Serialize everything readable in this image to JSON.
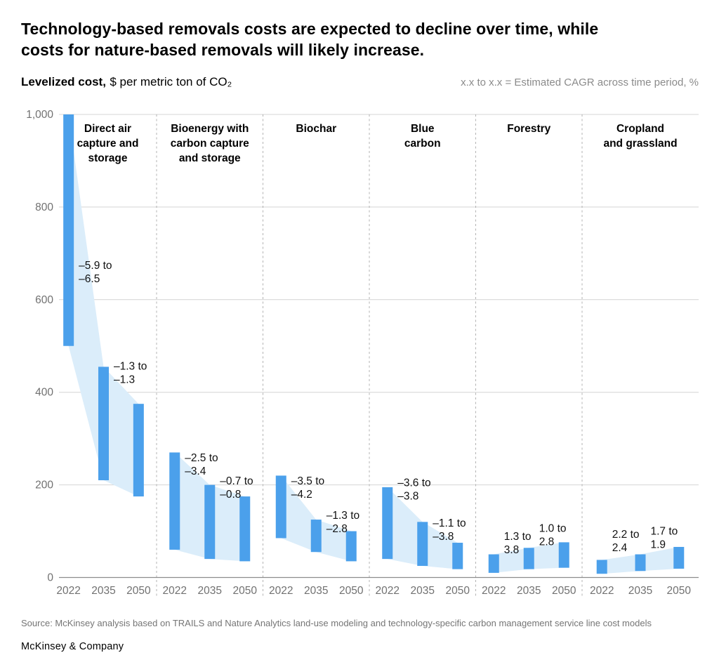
{
  "page": {
    "title_lines": [
      "Technology-based removals costs are expected to decline over time, while",
      "costs for nature-based removals will likely increase."
    ],
    "subtitle_bold": "Levelized cost,",
    "subtitle_rest": "$ per metric ton of CO₂",
    "legend_note": "x.x to x.x = Estimated CAGR across time period, %",
    "source": "Source: McKinsey analysis based on TRAILS and Nature Analytics land-use modeling and technology-specific carbon management service line cost models",
    "brand": "McKinsey & Company"
  },
  "chart_data": {
    "type": "bar",
    "subtype": "floating-range-bars-with-connecting-band",
    "title": "Levelized cost, $ per metric ton of CO₂",
    "xlabel": "",
    "ylabel": "$ per metric ton of CO₂",
    "years": [
      "2022",
      "2035",
      "2050"
    ],
    "ylim": [
      0,
      1000
    ],
    "yticks": [
      0,
      200,
      400,
      600,
      800,
      1000
    ],
    "ytick_labels": [
      "0",
      "200",
      "400",
      "600",
      "800",
      "1,000"
    ],
    "grid": true,
    "legend_position": "top-right",
    "colors": {
      "bar": "#4BA0EB",
      "band": "#DBEDFA",
      "grid": "#D4D4D4",
      "zero_axis": "#8C8C8C",
      "separator": "#B3B3B3",
      "tick_text": "#717171",
      "category_text": "#000000",
      "annotation_text": "#111111"
    },
    "categories": [
      {
        "name": "Direct air capture and storage",
        "label_lines": [
          "Direct air",
          "capture and",
          "storage"
        ],
        "ranges": [
          [
            500,
            1000
          ],
          [
            210,
            455
          ],
          [
            175,
            375
          ]
        ],
        "cagr": [
          {
            "lines": [
              "–5.9 to",
              "–6.5"
            ],
            "label_y": 688
          },
          {
            "lines": [
              "–1.3 to",
              "–1.3"
            ],
            "label_y": 470
          }
        ]
      },
      {
        "name": "Bioenergy with carbon capture and storage",
        "label_lines": [
          "Bioenergy with",
          "carbon capture",
          "and storage"
        ],
        "ranges": [
          [
            60,
            270
          ],
          [
            40,
            200
          ],
          [
            35,
            175
          ]
        ],
        "cagr": [
          {
            "lines": [
              "–2.5 to",
              "–3.4"
            ],
            "label_y": 272
          },
          {
            "lines": [
              "–0.7 to",
              "–0.8"
            ],
            "label_y": 222
          }
        ]
      },
      {
        "name": "Biochar",
        "label_lines": [
          "Biochar"
        ],
        "ranges": [
          [
            85,
            220
          ],
          [
            55,
            125
          ],
          [
            35,
            100
          ]
        ],
        "cagr": [
          {
            "lines": [
              "–3.5 to",
              "–4.2"
            ],
            "label_y": 222
          },
          {
            "lines": [
              "–1.3 to",
              "–2.8"
            ],
            "label_y": 148
          }
        ]
      },
      {
        "name": "Blue carbon",
        "label_lines": [
          "Blue",
          "carbon"
        ],
        "ranges": [
          [
            40,
            195
          ],
          [
            25,
            120
          ],
          [
            18,
            75
          ]
        ],
        "cagr": [
          {
            "lines": [
              "–3.6 to",
              "–3.8"
            ],
            "label_y": 218
          },
          {
            "lines": [
              "–1.1 to",
              "–3.8"
            ],
            "label_y": 131
          }
        ]
      },
      {
        "name": "Forestry",
        "label_lines": [
          "Forestry"
        ],
        "ranges": [
          [
            10,
            50
          ],
          [
            18,
            64
          ],
          [
            21,
            76
          ]
        ],
        "cagr": [
          {
            "lines": [
              "1.3 to",
              "3.8"
            ],
            "label_y": 102
          },
          {
            "lines": [
              "1.0 to",
              "2.8"
            ],
            "label_y": 120
          }
        ]
      },
      {
        "name": "Cropland and grassland",
        "label_lines": [
          "Cropland",
          "and grassland"
        ],
        "ranges": [
          [
            8,
            38
          ],
          [
            14,
            50
          ],
          [
            19,
            66
          ]
        ],
        "cagr": [
          {
            "lines": [
              "2.2 to",
              "2.4"
            ],
            "label_y": 107
          },
          {
            "lines": [
              "1.7 to",
              "1.9"
            ],
            "label_y": 114
          }
        ]
      }
    ]
  }
}
